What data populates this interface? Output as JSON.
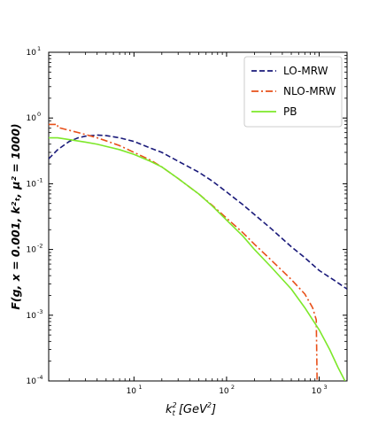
{
  "chart_data": {
    "type": "line",
    "xscale": "log",
    "yscale": "log",
    "xlim": [
      1.2,
      2000
    ],
    "ylim": [
      0.0001,
      10
    ],
    "xticks": [
      {
        "value": 10,
        "label": "10",
        "exp": "1"
      },
      {
        "value": 100,
        "label": "10",
        "exp": "2"
      },
      {
        "value": 1000,
        "label": "10",
        "exp": "3"
      }
    ],
    "yticks": [
      {
        "value": 10,
        "label": "10",
        "exp": "1"
      },
      {
        "value": 1,
        "label": "10",
        "exp": "0"
      },
      {
        "value": 0.1,
        "label": "10",
        "exp": "-1"
      },
      {
        "value": 0.01,
        "label": "10",
        "exp": "-2"
      },
      {
        "value": 0.001,
        "label": "10",
        "exp": "-3"
      },
      {
        "value": 0.0001,
        "label": "10",
        "exp": "-4"
      }
    ],
    "xlabel": {
      "main": "k",
      "sub": "t",
      "sup": "2",
      "rest": " [GeV",
      "sup2": "2",
      "end": "]"
    },
    "ylabel": "F(g, x = 0.001, k²ₜ, μ² = 1000)",
    "legend_position": "top-right",
    "grid": false,
    "series": [
      {
        "name": "LO-MRW",
        "color": "#1a1a7a",
        "dash": "6,3",
        "x": [
          1.2,
          1.5,
          2,
          2.5,
          3,
          4,
          5,
          7,
          10,
          15,
          20,
          30,
          50,
          70,
          100,
          150,
          200,
          300,
          500,
          700,
          1000,
          1500,
          2000
        ],
        "y": [
          0.24,
          0.33,
          0.44,
          0.5,
          0.53,
          0.55,
          0.54,
          0.5,
          0.44,
          0.35,
          0.3,
          0.22,
          0.15,
          0.11,
          0.075,
          0.048,
          0.034,
          0.021,
          0.011,
          0.0075,
          0.0048,
          0.0033,
          0.0025
        ]
      },
      {
        "name": "NLO-MRW",
        "color": "#e8501a",
        "dash": "8,3,2,3",
        "x": [
          1.2,
          1.5,
          1.5,
          2,
          2.5,
          3,
          4,
          5,
          7,
          10,
          15,
          20,
          30,
          50,
          70,
          100,
          150,
          200,
          300,
          500,
          700,
          850,
          930,
          940,
          950
        ],
        "y": [
          0.8,
          0.8,
          0.72,
          0.65,
          0.6,
          0.56,
          0.5,
          0.45,
          0.38,
          0.3,
          0.23,
          0.18,
          0.12,
          0.07,
          0.047,
          0.03,
          0.018,
          0.012,
          0.007,
          0.0035,
          0.0021,
          0.0013,
          0.00085,
          0.0003,
          0.0001
        ]
      },
      {
        "name": "PB",
        "color": "#7de82a",
        "dash": "",
        "x": [
          1.2,
          1.5,
          2,
          3,
          4,
          5,
          7,
          10,
          15,
          20,
          30,
          50,
          70,
          100,
          150,
          200,
          300,
          500,
          700,
          1000,
          1300,
          1600,
          1900
        ],
        "y": [
          0.5,
          0.5,
          0.47,
          0.43,
          0.4,
          0.37,
          0.33,
          0.28,
          0.22,
          0.18,
          0.12,
          0.07,
          0.046,
          0.028,
          0.016,
          0.01,
          0.0055,
          0.0025,
          0.0013,
          0.0006,
          0.0003,
          0.00016,
          0.0001
        ]
      }
    ]
  }
}
